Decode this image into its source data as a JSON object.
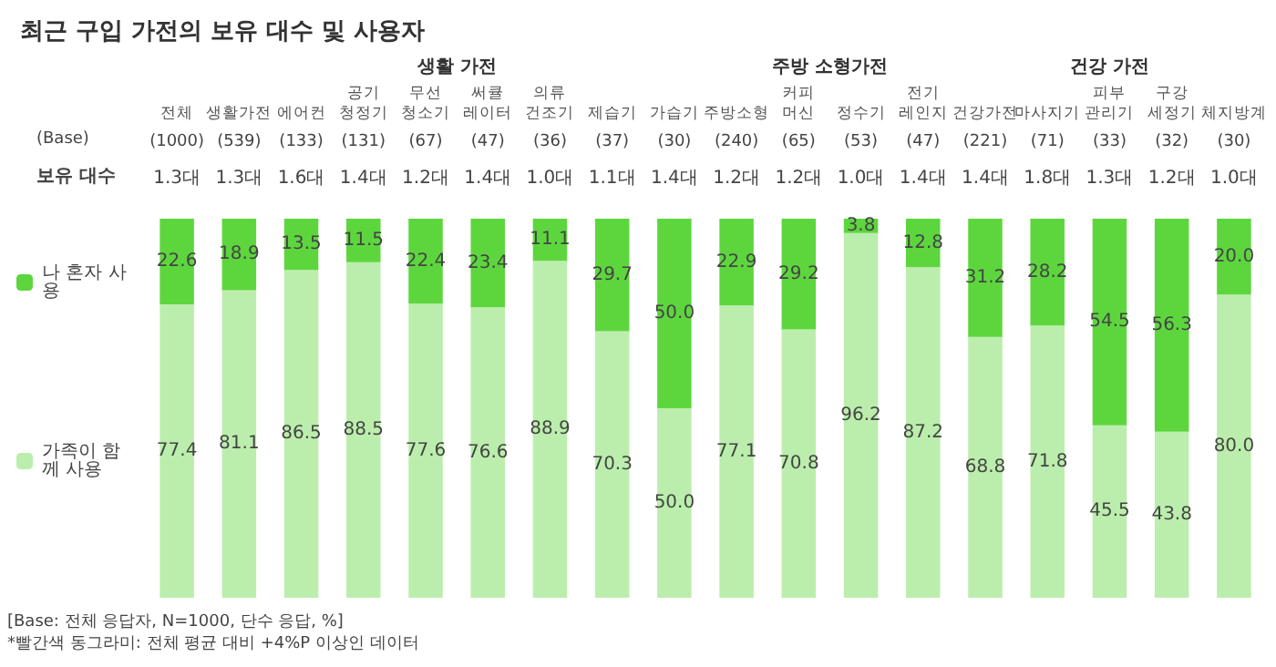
{
  "chart_data": {
    "type": "bar",
    "title": "최근 구입 가전의 보유 대수 및 사용자",
    "stacked": true,
    "categories": [
      "전체",
      "생활가전",
      "에어컨",
      "공기 청정기",
      "무선 청소기",
      "써큘 레이터",
      "의류 건조기",
      "제습기",
      "가습기",
      "주방소형",
      "커피 머신",
      "정수기",
      "전기 레인지",
      "건강가전",
      "마사지기",
      "피부 관리기",
      "구강 세정기",
      "체지방계"
    ],
    "series": [
      {
        "name": "가족이 함께 사용",
        "color": "#bbeeac",
        "values": [
          77.4,
          81.1,
          86.5,
          88.5,
          77.6,
          76.6,
          88.9,
          70.3,
          50.0,
          77.1,
          70.8,
          96.2,
          87.2,
          68.8,
          71.8,
          45.5,
          43.8,
          80.0
        ],
        "value_labels": [
          "77.4",
          "81.1",
          "86.5",
          "88.5",
          "77.6",
          "76.6",
          "88.9",
          "70.3",
          "50.0",
          "77.1",
          "70.8",
          "96.2",
          "87.2",
          "68.8",
          "71.8",
          "45.5",
          "43.8",
          "80.0"
        ]
      },
      {
        "name": "나 혼자 사용",
        "color": "#5dd63e",
        "values": [
          22.6,
          18.9,
          13.5,
          11.5,
          22.4,
          23.4,
          11.1,
          29.7,
          50.0,
          22.9,
          29.2,
          3.8,
          12.8,
          31.2,
          28.2,
          54.5,
          56.3,
          20.0
        ],
        "value_labels": [
          "22.6",
          "18.9",
          "13.5",
          "11.5",
          "22.4",
          "23.4",
          "11.1",
          "29.7",
          "50.0",
          "22.9",
          "29.2",
          "3.8",
          "12.8",
          "31.2",
          "28.2",
          "54.5",
          "56.3",
          "20.0"
        ]
      }
    ],
    "ylim": [
      0,
      100
    ],
    "tick_labels": "x",
    "legend": "left",
    "annotations": [
      "(Base)",
      "보유 대수",
      "생활 가전",
      "주방 소형가전",
      "건강 가전",
      "(1000)",
      "(539)",
      "(133)",
      "(131)",
      "(67)",
      "(47)",
      "(36)",
      "(37)",
      "(30)",
      "(240)",
      "(65)",
      "(53)",
      "(47)",
      "(221)",
      "(71)",
      "(33)",
      "(32)",
      "(30)",
      "1.3대",
      "1.3대",
      "1.6대",
      "1.4대",
      "1.2대",
      "1.4대",
      "1.0대",
      "1.1대",
      "1.4대",
      "1.2대",
      "1.2대",
      "1.0대",
      "1.4대",
      "1.4대",
      "1.8대",
      "1.3대",
      "1.2대",
      "1.0대",
      "[Base: 전체 응답자, N=1000, 단수 응답, %]",
      "*빨간색 동그라미: 전체 평균 대비 +4%P 이상인 데이터"
    ]
  }
}
